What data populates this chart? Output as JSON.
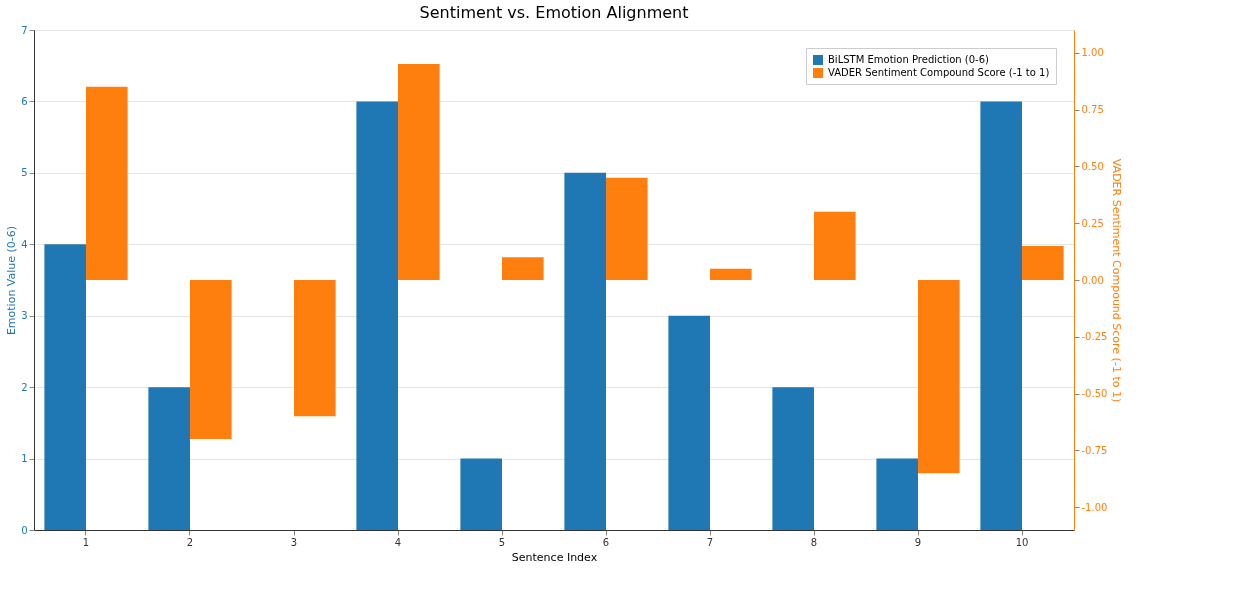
{
  "chart_data": {
    "type": "bar",
    "title": "Sentiment vs. Emotion Alignment",
    "xlabel": "Sentence Index",
    "ylabel": "Emotion Value (0-6)",
    "y2label": "VADER Sentiment Compound Score (-1 to 1)",
    "categories": [
      "1",
      "2",
      "3",
      "4",
      "5",
      "6",
      "7",
      "8",
      "9",
      "10"
    ],
    "series": [
      {
        "name": "BiLSTM Emotion Prediction (0-6)",
        "color": "#1f77b4",
        "values": [
          4,
          2,
          0,
          6,
          1,
          5,
          3,
          2,
          1,
          6
        ]
      },
      {
        "name": "VADER Sentiment Compound Score (-1 to 1)",
        "color": "#ff7f0e",
        "axis": "y2",
        "values": [
          0.85,
          -0.7,
          -0.6,
          0.95,
          0.1,
          0.45,
          0.05,
          0.3,
          -0.85,
          0.15
        ]
      }
    ],
    "ylim": [
      0,
      7
    ],
    "yticks": [
      0,
      1,
      2,
      3,
      4,
      5,
      6,
      7
    ],
    "y2lim": [
      -1.1,
      1.1
    ],
    "y2ticks": [
      {
        "value": -1,
        "label": "-1.00"
      },
      {
        "value": -0.75,
        "label": "-0.75"
      },
      {
        "value": -0.5,
        "label": "-0.50"
      },
      {
        "value": -0.25,
        "label": "-0.25"
      },
      {
        "value": 0,
        "label": "0.00"
      },
      {
        "value": 0.25,
        "label": "0.25"
      },
      {
        "value": 0.5,
        "label": "0.50"
      },
      {
        "value": 0.75,
        "label": "0.75"
      },
      {
        "value": 1,
        "label": "1.00"
      }
    ],
    "grid": "y",
    "legend": "top right"
  }
}
